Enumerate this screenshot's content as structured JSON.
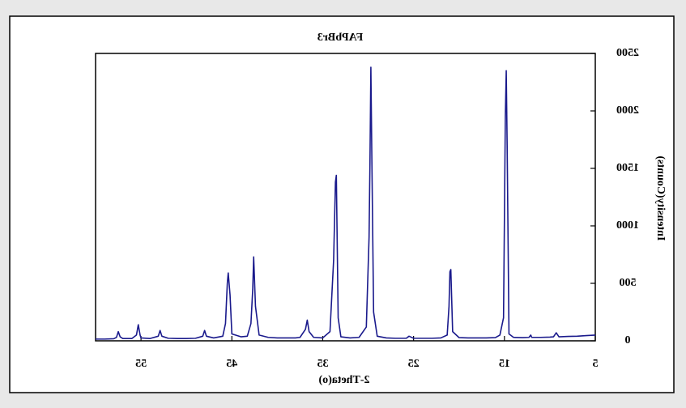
{
  "chart_data": {
    "type": "line",
    "title": "FAPbBr3",
    "x_label": "2-Theta(o)",
    "y_label": "Intensity(Counts)",
    "x": [
      5,
      6,
      7,
      8,
      9,
      9.3,
      9.6,
      10,
      11,
      12,
      12.1,
      12.3,
      13,
      14,
      14.5,
      14.7,
      14.8,
      14.9,
      15.1,
      15.5,
      16,
      17,
      18,
      19,
      20,
      20.7,
      20.9,
      21.0,
      21.1,
      21.3,
      22,
      23,
      24,
      25,
      25.5,
      25.8,
      26,
      27,
      28,
      29,
      29.4,
      29.6,
      29.7,
      29.8,
      29.9,
      30.2,
      31,
      32,
      33,
      33.3,
      33.5,
      33.6,
      33.8,
      34.2,
      35,
      36,
      36.5,
      36.7,
      36.9,
      37.5,
      38,
      39,
      40,
      41,
      42,
      42.4,
      42.6,
      42.7,
      42.9,
      43.3,
      44,
      45,
      45.2,
      45.4,
      45.5,
      45.7,
      46,
      47,
      47.8,
      48,
      48.2,
      49,
      50,
      51,
      52,
      52.7,
      52.9,
      53.1,
      54,
      55,
      55.1,
      55.3,
      55.5,
      56,
      57,
      57.3,
      57.5,
      57.7,
      58,
      59,
      60
    ],
    "values": [
      50,
      45,
      40,
      38,
      35,
      70,
      35,
      32,
      30,
      30,
      50,
      30,
      28,
      30,
      60,
      1700,
      2350,
      1950,
      200,
      50,
      28,
      25,
      25,
      25,
      28,
      80,
      620,
      600,
      300,
      50,
      25,
      22,
      22,
      22,
      40,
      22,
      22,
      22,
      25,
      40,
      250,
      1650,
      2380,
      1550,
      900,
      120,
      30,
      25,
      35,
      200,
      1440,
      1380,
      700,
      80,
      25,
      30,
      80,
      180,
      100,
      30,
      25,
      25,
      25,
      30,
      50,
      300,
      730,
      450,
      150,
      40,
      35,
      60,
      400,
      590,
      500,
      150,
      40,
      25,
      40,
      90,
      40,
      22,
      20,
      20,
      22,
      40,
      90,
      40,
      20,
      25,
      50,
      140,
      50,
      20,
      20,
      35,
      80,
      30,
      18,
      15,
      15
    ],
    "color": "#1a1a8c",
    "xlim": [
      5,
      60
    ],
    "xticks": [
      5,
      15,
      25,
      35,
      45,
      55
    ],
    "ylim": [
      0,
      2500
    ],
    "yticks": [
      0,
      500,
      1000,
      1500,
      2000,
      2500
    ],
    "x_reversed": true,
    "y_axis_side": "right",
    "mirrored_text": true
  }
}
